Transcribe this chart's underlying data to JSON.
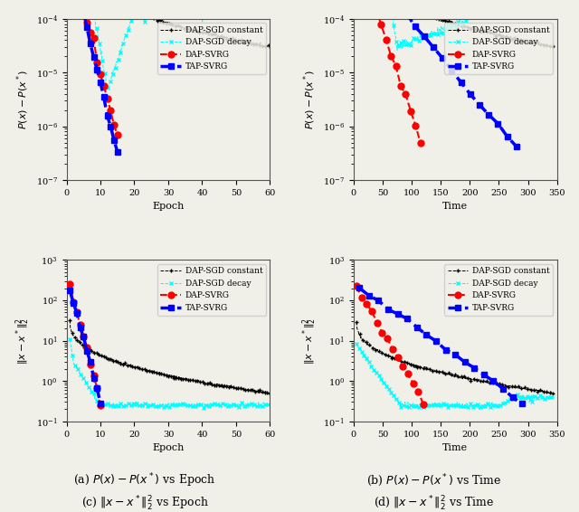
{
  "fig_width": 6.4,
  "fig_height": 5.66,
  "background": "#f0f0e8",
  "subplots": [
    {
      "id": "a",
      "xlabel": "Epoch",
      "ylabel": "$P(x) - P(x^*)$",
      "xlim": [
        0,
        60
      ],
      "ylim": [
        1e-07,
        0.0001
      ],
      "caption": "(a) $P(x) - P(x^*)$ vs Epoch",
      "xmax": 60,
      "xticks": [
        0,
        10,
        20,
        30,
        40,
        50,
        60
      ]
    },
    {
      "id": "b",
      "xlabel": "Time",
      "ylabel": "$P(x) - P(x^*)$",
      "xlim": [
        0,
        350
      ],
      "ylim": [
        1e-07,
        0.0001
      ],
      "caption": "(b) $P(x) - P(x^*)$ vs Time",
      "xmax": 350,
      "xticks": [
        0,
        50,
        100,
        150,
        200,
        250,
        300,
        350
      ]
    },
    {
      "id": "c",
      "xlabel": "Epoch",
      "ylabel": "$\\|x - x^*\\|_2^2$",
      "xlim": [
        0,
        60
      ],
      "ylim": [
        0.1,
        1000.0
      ],
      "caption": "(c) $\\|x - x^*\\|_2^2$ vs Epoch",
      "xmax": 60,
      "xticks": [
        0,
        10,
        20,
        30,
        40,
        50,
        60
      ]
    },
    {
      "id": "d",
      "xlabel": "Time",
      "ylabel": "$\\|x - x^*\\|_2^2$",
      "xlim": [
        0,
        350
      ],
      "ylim": [
        0.1,
        1000.0
      ],
      "caption": "(d) $\\|x - x^*\\|_2^2$ vs Time",
      "xmax": 350,
      "xticks": [
        0,
        50,
        100,
        150,
        200,
        250,
        300,
        350
      ]
    }
  ]
}
